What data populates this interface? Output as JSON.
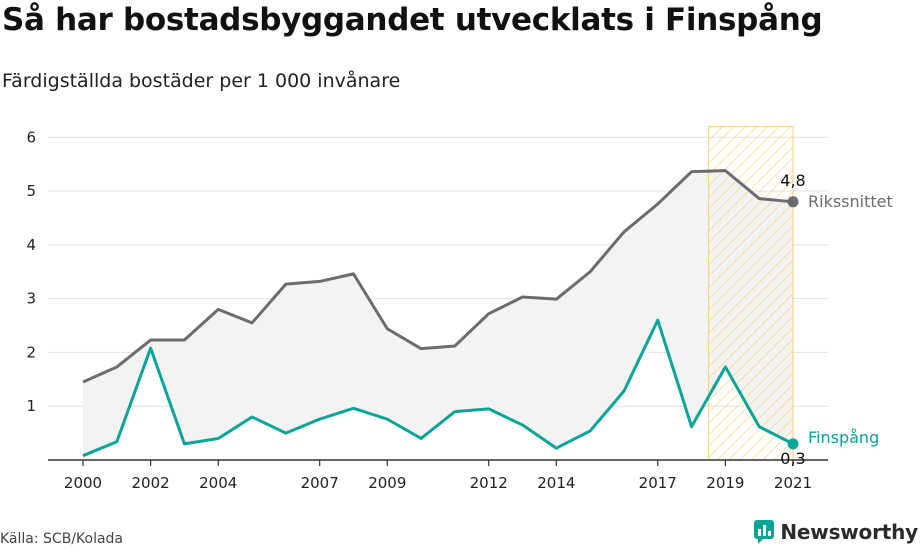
{
  "title": "Så har bostadsbyggandet utvecklats i Finspång",
  "subtitle": "Färdigställda bostäder per 1 000 invånare",
  "source": "Källa: SCB/Kolada",
  "brand": "Newsworthy",
  "colors": {
    "riket": "#6b6b70",
    "finspang": "#0aa597",
    "grid": "#e2e2e2",
    "highlight": "#f6c343",
    "area": "#f3f3f3"
  },
  "chart_data": {
    "type": "line",
    "x": [
      2000,
      2001,
      2002,
      2003,
      2004,
      2005,
      2006,
      2007,
      2008,
      2009,
      2010,
      2011,
      2012,
      2013,
      2014,
      2015,
      2016,
      2017,
      2018,
      2019,
      2020,
      2021
    ],
    "xticks": [
      "2000",
      "2002",
      "2004",
      "2007",
      "2009",
      "2012",
      "2014",
      "2017",
      "2019",
      "2021"
    ],
    "yticks": [
      "1",
      "2",
      "3",
      "4",
      "5",
      "6"
    ],
    "ylim": [
      0,
      6.2
    ],
    "grid": true,
    "highlight_range": [
      2019,
      2021
    ],
    "series": [
      {
        "name": "Rikssnittet",
        "values": [
          1.45,
          1.73,
          2.23,
          2.23,
          2.8,
          2.55,
          3.27,
          3.32,
          3.46,
          2.44,
          2.07,
          2.12,
          2.72,
          3.03,
          2.99,
          3.5,
          4.24,
          4.76,
          5.36,
          5.38,
          4.86,
          4.8
        ],
        "end_label": "4,8"
      },
      {
        "name": "Finspång",
        "values": [
          0.08,
          0.34,
          2.08,
          0.3,
          0.4,
          0.8,
          0.5,
          0.76,
          0.96,
          0.76,
          0.4,
          0.9,
          0.95,
          0.65,
          0.22,
          0.54,
          1.28,
          2.6,
          0.62,
          1.73,
          0.62,
          0.3
        ],
        "end_label": "0,3"
      }
    ]
  }
}
